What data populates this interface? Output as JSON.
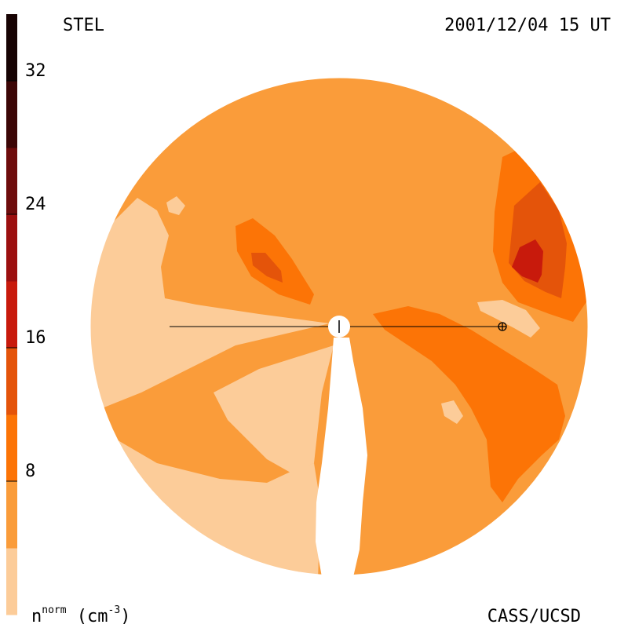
{
  "title_left": "STEL",
  "title_right": "2001/12/04 15 UT",
  "credit": "CASS/UCSD",
  "colorbar": {
    "unit_base": "n",
    "unit_sup": "norm",
    "unit_rest": " (cm",
    "unit_exp": "-3",
    "unit_close": ")",
    "ticks": [
      "8",
      "16",
      "24",
      "32"
    ],
    "colors": [
      "#FCCC99",
      "#FA9C3A",
      "#FC7406",
      "#E4540A",
      "#C81A0C",
      "#9C0F0F",
      "#6E0C0C",
      "#3C0606",
      "#170303"
    ]
  },
  "chart_data": {
    "type": "heatmap",
    "description_scale": "n_norm density contours",
    "range": [
      0,
      36
    ],
    "tick_values": [
      8,
      16,
      24,
      32
    ],
    "levels": [
      4,
      8,
      12,
      16,
      20,
      24,
      28,
      32
    ],
    "markers": [
      "sun",
      "earth"
    ]
  }
}
